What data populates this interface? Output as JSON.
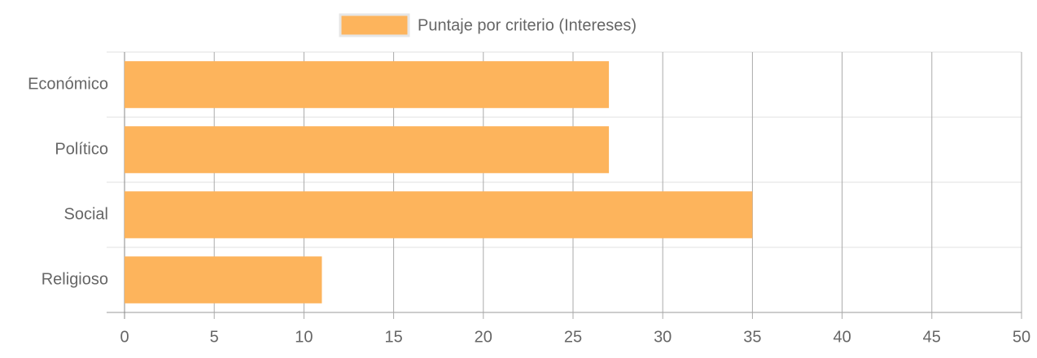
{
  "chart_data": {
    "type": "bar",
    "orientation": "horizontal",
    "categories": [
      "Económico",
      "Político",
      "Social",
      "Religioso"
    ],
    "series": [
      {
        "name": "Puntaje por criterio (Intereses)",
        "color": "#fdb45c",
        "values": [
          27,
          27,
          35,
          11
        ]
      }
    ],
    "xlim": [
      0,
      50
    ],
    "xticks": [
      0,
      5,
      10,
      15,
      20,
      25,
      30,
      35,
      40,
      45,
      50
    ],
    "grid": true,
    "legend": "top"
  }
}
